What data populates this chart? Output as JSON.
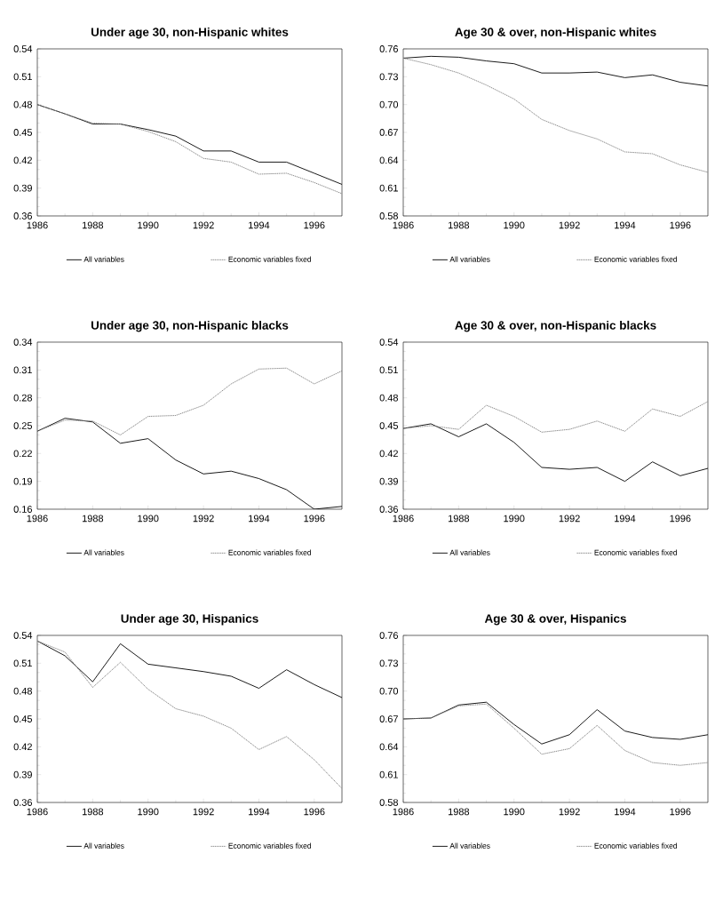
{
  "chart_data": [
    {
      "type": "line",
      "title": "Under age 30, non-Hispanic whites",
      "x": [
        1986,
        1987,
        1988,
        1989,
        1990,
        1991,
        1992,
        1993,
        1994,
        1995,
        1996,
        1997
      ],
      "xlim": [
        1986,
        1997
      ],
      "xticks": [
        1986,
        1988,
        1990,
        1992,
        1994,
        1996
      ],
      "ylim": [
        0.36,
        0.54
      ],
      "yticks": [
        0.36,
        0.39,
        0.42,
        0.45,
        0.48,
        0.51,
        0.54
      ],
      "legend": "bottom",
      "series": [
        {
          "name": "All variables",
          "color": "#000000",
          "line_style": "solid",
          "values": [
            0.48,
            0.47,
            0.459,
            0.459,
            0.453,
            0.446,
            0.43,
            0.43,
            0.418,
            0.418,
            0.406,
            0.394
          ]
        },
        {
          "name": "Economic variables fixed",
          "color": "#808080",
          "line_style": "dotted",
          "values": [
            0.48,
            0.47,
            0.46,
            0.459,
            0.451,
            0.44,
            0.422,
            0.418,
            0.405,
            0.406,
            0.396,
            0.384
          ]
        }
      ]
    },
    {
      "type": "line",
      "title": "Age 30 & over, non-Hispanic whites",
      "x": [
        1986,
        1987,
        1988,
        1989,
        1990,
        1991,
        1992,
        1993,
        1994,
        1995,
        1996,
        1997
      ],
      "xlim": [
        1986,
        1997
      ],
      "xticks": [
        1986,
        1988,
        1990,
        1992,
        1994,
        1996
      ],
      "ylim": [
        0.58,
        0.76
      ],
      "yticks": [
        0.58,
        0.61,
        0.64,
        0.67,
        {
          "value": 0.7,
          "label": "0.70"
        },
        0.73,
        0.76
      ],
      "legend": "bottom",
      "series": [
        {
          "name": "All variables",
          "color": "#000000",
          "line_style": "solid",
          "values": [
            0.75,
            0.752,
            0.751,
            0.747,
            0.744,
            0.734,
            0.734,
            0.735,
            0.729,
            0.732,
            0.724,
            0.72
          ]
        },
        {
          "name": "Economic variables fixed",
          "color": "#808080",
          "line_style": "dotted",
          "values": [
            0.75,
            0.743,
            0.734,
            0.721,
            0.706,
            0.684,
            0.672,
            0.663,
            0.649,
            0.647,
            0.635,
            0.627
          ]
        }
      ]
    },
    {
      "type": "line",
      "title": "Under age 30, non-Hispanic blacks",
      "x": [
        1986,
        1987,
        1988,
        1989,
        1990,
        1991,
        1992,
        1993,
        1994,
        1995,
        1996,
        1997
      ],
      "xlim": [
        1986,
        1997
      ],
      "xticks": [
        1986,
        1988,
        1990,
        1992,
        1994,
        1996
      ],
      "ylim": [
        0.16,
        0.34
      ],
      "yticks": [
        0.16,
        0.19,
        0.22,
        0.25,
        0.28,
        0.31,
        0.34
      ],
      "legend": "bottom",
      "series": [
        {
          "name": "All variables",
          "color": "#000000",
          "line_style": "solid",
          "values": [
            0.244,
            0.258,
            0.254,
            0.231,
            0.236,
            0.213,
            0.198,
            0.201,
            0.193,
            0.181,
            0.16,
            0.163
          ]
        },
        {
          "name": "Economic variables fixed",
          "color": "#808080",
          "line_style": "dotted",
          "values": [
            0.244,
            0.256,
            0.255,
            0.24,
            0.26,
            0.261,
            0.272,
            0.295,
            0.311,
            0.312,
            0.295,
            0.309
          ]
        }
      ]
    },
    {
      "type": "line",
      "title": "Age 30 & over, non-Hispanic blacks",
      "x": [
        1986,
        1987,
        1988,
        1989,
        1990,
        1991,
        1992,
        1993,
        1994,
        1995,
        1996,
        1997
      ],
      "xlim": [
        1986,
        1997
      ],
      "xticks": [
        1986,
        1988,
        1990,
        1992,
        1994,
        1996
      ],
      "ylim": [
        0.36,
        0.54
      ],
      "yticks": [
        0.36,
        0.39,
        0.42,
        0.45,
        0.48,
        0.51,
        0.54
      ],
      "legend": "bottom",
      "series": [
        {
          "name": "All variables",
          "color": "#000000",
          "line_style": "solid",
          "values": [
            0.447,
            0.452,
            0.438,
            0.452,
            0.432,
            0.405,
            0.403,
            0.405,
            0.39,
            0.411,
            0.396,
            0.404
          ]
        },
        {
          "name": "Economic variables fixed",
          "color": "#808080",
          "line_style": "dotted",
          "values": [
            0.447,
            0.45,
            0.446,
            0.472,
            0.46,
            0.443,
            0.446,
            0.455,
            0.444,
            0.468,
            0.46,
            0.476
          ]
        }
      ]
    },
    {
      "type": "line",
      "title": "Under age 30, Hispanics",
      "x": [
        1986,
        1987,
        1988,
        1989,
        1990,
        1991,
        1992,
        1993,
        1994,
        1995,
        1996,
        1997
      ],
      "xlim": [
        1986,
        1997
      ],
      "xticks": [
        1986,
        1988,
        1990,
        1992,
        1994,
        1996
      ],
      "ylim": [
        0.36,
        0.54
      ],
      "yticks": [
        0.36,
        0.39,
        0.42,
        0.45,
        0.48,
        0.51,
        0.54
      ],
      "legend": "bottom",
      "series": [
        {
          "name": "All variables",
          "color": "#000000",
          "line_style": "solid",
          "values": [
            0.534,
            0.518,
            0.49,
            0.531,
            0.509,
            0.505,
            0.501,
            0.496,
            0.483,
            0.503,
            0.487,
            0.473
          ]
        },
        {
          "name": "Economic variables fixed",
          "color": "#808080",
          "line_style": "dotted",
          "values": [
            0.534,
            0.522,
            0.484,
            0.511,
            0.482,
            0.461,
            0.453,
            0.44,
            0.417,
            0.431,
            0.406,
            0.375
          ]
        }
      ]
    },
    {
      "type": "line",
      "title": "Age 30 & over, Hispanics",
      "x": [
        1986,
        1987,
        1988,
        1989,
        1990,
        1991,
        1992,
        1993,
        1994,
        1995,
        1996,
        1997
      ],
      "xlim": [
        1986,
        1997
      ],
      "xticks": [
        1986,
        1988,
        1990,
        1992,
        1994,
        1996
      ],
      "ylim": [
        0.58,
        0.76
      ],
      "yticks": [
        0.58,
        0.61,
        0.64,
        0.67,
        {
          "value": 0.7,
          "label": "0.70"
        },
        0.73,
        0.76
      ],
      "legend": "bottom",
      "series": [
        {
          "name": "All variables",
          "color": "#000000",
          "line_style": "solid",
          "values": [
            0.67,
            0.671,
            0.685,
            0.688,
            0.664,
            0.643,
            0.653,
            0.68,
            0.657,
            0.65,
            0.648,
            0.653
          ]
        },
        {
          "name": "Economic variables fixed",
          "color": "#808080",
          "line_style": "dotted",
          "values": [
            0.67,
            0.671,
            0.684,
            0.686,
            0.66,
            0.632,
            0.638,
            0.663,
            0.636,
            0.623,
            0.62,
            0.623
          ]
        }
      ]
    }
  ]
}
